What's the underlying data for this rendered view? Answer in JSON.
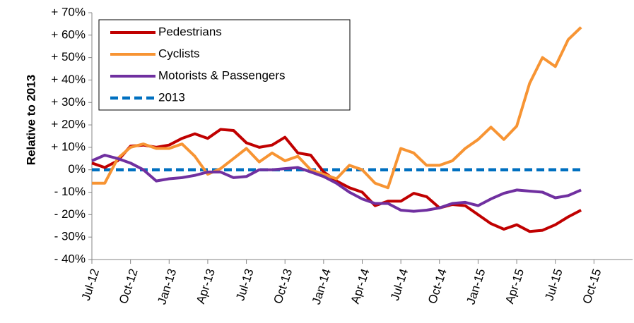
{
  "chart_data": {
    "type": "line",
    "y_label": "Relative to 2013",
    "categories": [
      "Jul-12",
      null,
      null,
      "Oct-12",
      null,
      null,
      "Jan-13",
      null,
      null,
      "Apr-13",
      null,
      null,
      "Jul-13",
      null,
      null,
      "Oct-13",
      null,
      null,
      "Jan-14",
      null,
      null,
      "Apr-14",
      null,
      null,
      "Jul-14",
      null,
      null,
      "Oct-14",
      null,
      null,
      "Jan-15",
      null,
      null,
      "Apr-15",
      null,
      null,
      "Jul-15",
      null,
      null,
      "Oct-15",
      null,
      null
    ],
    "series": [
      {
        "name": "Pedestrians",
        "color": "#c00000",
        "dashed": false,
        "values": [
          3,
          1,
          4,
          10.5,
          11,
          10,
          11,
          14,
          16,
          14,
          18,
          17.5,
          12,
          10,
          11,
          14.5,
          7.5,
          6.5,
          -1,
          -5,
          -8,
          -10,
          -16,
          -14,
          -14,
          -10.5,
          -12,
          -17,
          -15.5,
          -16,
          -20,
          -24,
          -26.5,
          -24.5,
          -27.5,
          -27,
          -24.5,
          -21,
          -18,
          null,
          null,
          null
        ]
      },
      {
        "name": "Cyclists",
        "color": "#f79433",
        "dashed": false,
        "values": [
          -6,
          -6,
          5,
          10,
          11.5,
          9.5,
          9.5,
          11.5,
          6,
          -2,
          0.5,
          5,
          9.5,
          3.5,
          7.5,
          4,
          6,
          0,
          -2,
          -4,
          2,
          0,
          -6,
          -8,
          9.5,
          7.5,
          2,
          2,
          4,
          9.5,
          13.5,
          19,
          13.5,
          19.5,
          38.5,
          50,
          46,
          58,
          63.5,
          null,
          null,
          null
        ]
      },
      {
        "name": "Motorists & Passengers",
        "color": "#7030a0",
        "dashed": false,
        "values": [
          4,
          6.5,
          5,
          3,
          0,
          -5,
          -4,
          -3.5,
          -2.5,
          -1,
          -1,
          -3.5,
          -3,
          0,
          0,
          0.5,
          1,
          -1,
          -3,
          -6,
          -10,
          -13,
          -15,
          -15,
          -18,
          -18.5,
          -18,
          -17,
          -15,
          -14.5,
          -16,
          -13,
          -10.5,
          -9,
          -9.5,
          -10,
          -12.5,
          -11.5,
          -9,
          null,
          null,
          null
        ]
      },
      {
        "name": "2013",
        "color": "#0070c0",
        "dashed": true,
        "values": [
          0,
          0,
          0,
          0,
          0,
          0,
          0,
          0,
          0,
          0,
          0,
          0,
          0,
          0,
          0,
          0,
          0,
          0,
          0,
          0,
          0,
          0,
          0,
          0,
          0,
          0,
          0,
          0,
          0,
          0,
          0,
          0,
          0,
          0,
          0,
          0,
          0,
          0,
          0,
          null,
          null,
          null
        ]
      }
    ],
    "ylim": [
      -40,
      70
    ],
    "yticks": [
      {
        "value": -40,
        "label": "- 40%"
      },
      {
        "value": -30,
        "label": "- 30%"
      },
      {
        "value": -20,
        "label": "- 20%"
      },
      {
        "value": -10,
        "label": "- 10%"
      },
      {
        "value": 0,
        "label": "0%"
      },
      {
        "value": 10,
        "label": "+ 10%"
      },
      {
        "value": 20,
        "label": "+ 20%"
      },
      {
        "value": 30,
        "label": "+ 30%"
      },
      {
        "value": 40,
        "label": "+ 40%"
      },
      {
        "value": 50,
        "label": "+ 50%"
      },
      {
        "value": 60,
        "label": "+ 60%"
      },
      {
        "value": 70,
        "label": "+ 70%"
      }
    ],
    "legend": "top-left"
  }
}
